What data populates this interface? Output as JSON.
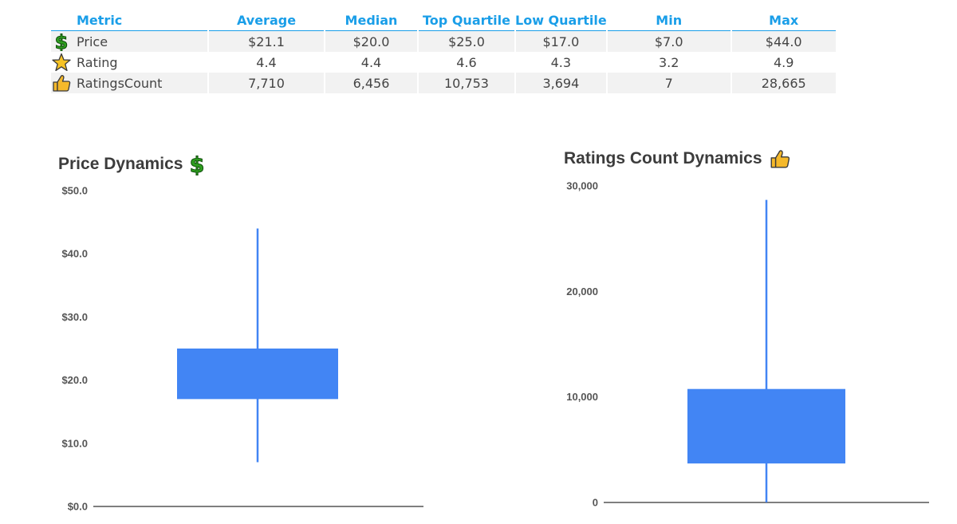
{
  "table": {
    "headers": [
      "Metric",
      "Average",
      "Median",
      "Top Quartile",
      "Low Quartile",
      "Min",
      "Max"
    ],
    "rows": [
      {
        "icon": "dollar-icon",
        "metric": "Price",
        "average": "$21.1",
        "median": "$20.0",
        "top_quartile": "$25.0",
        "low_quartile": "$17.0",
        "min": "$7.0",
        "max": "$44.0"
      },
      {
        "icon": "star-icon",
        "metric": "Rating",
        "average": "4.4",
        "median": "4.4",
        "top_quartile": "4.6",
        "low_quartile": "4.3",
        "min": "3.2",
        "max": "4.9"
      },
      {
        "icon": "thumbs-up-icon",
        "metric": "RatingsCount",
        "average": "7,710",
        "median": "6,456",
        "top_quartile": "10,753",
        "low_quartile": "3,694",
        "min": "7",
        "max": "28,665"
      }
    ]
  },
  "colors": {
    "header_text": "#1a9ee8",
    "box_fill": "#4285f4",
    "dollar_green": "#2e9e1f",
    "star_yellow": "#f7c325",
    "thumb_yellow": "#f5b92b"
  },
  "chart_data": [
    {
      "type": "candlestick",
      "title": "Price Dynamics",
      "title_icon": "dollar-icon",
      "ylim": [
        0,
        50
      ],
      "yticks": [
        0,
        10,
        20,
        30,
        40,
        50
      ],
      "ytick_labels": [
        "$0.0",
        "$10.0",
        "$20.0",
        "$30.0",
        "$40.0",
        "$50.0"
      ],
      "box": {
        "min": 7.0,
        "low_quartile": 17.0,
        "top_quartile": 25.0,
        "max": 44.0
      }
    },
    {
      "type": "candlestick",
      "title": "Ratings Count Dynamics",
      "title_icon": "thumbs-up-icon",
      "ylim": [
        0,
        30000
      ],
      "yticks": [
        0,
        10000,
        20000,
        30000
      ],
      "ytick_labels": [
        "0",
        "10,000",
        "20,000",
        "30,000"
      ],
      "box": {
        "min": 7,
        "low_quartile": 3694,
        "top_quartile": 10753,
        "max": 28665
      }
    }
  ]
}
